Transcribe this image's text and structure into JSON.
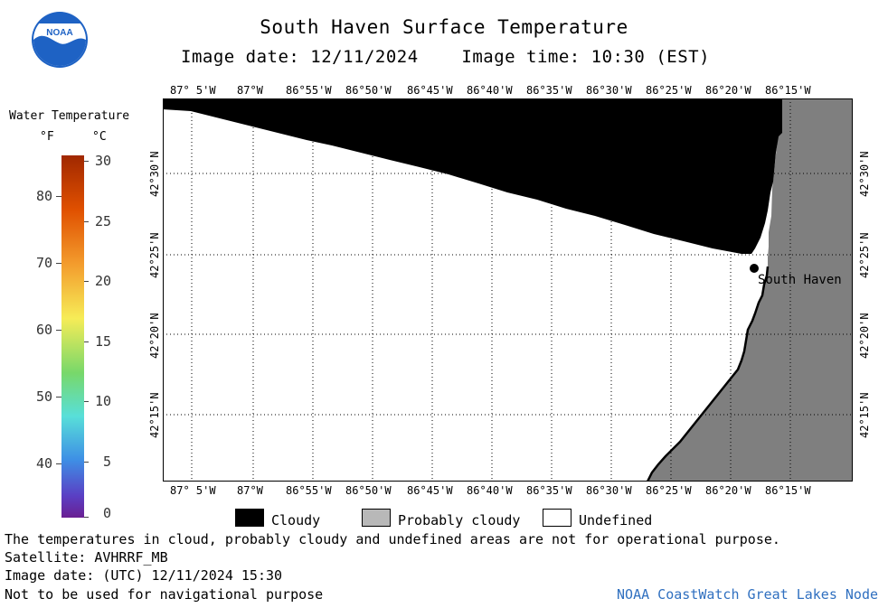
{
  "header": {
    "title": "South Haven Surface Temperature",
    "subtitle": "Image date: 12/11/2024    Image time: 10:30 (EST)"
  },
  "logo": {
    "text": "NOAA"
  },
  "legend_scale": {
    "title": "Water Temperature",
    "unit_f": "°F",
    "unit_c": "°C",
    "fahrenheit": [
      "80",
      "70",
      "60",
      "50",
      "40"
    ],
    "celsius": [
      "30",
      "25",
      "20",
      "15",
      "10",
      "5",
      "0"
    ]
  },
  "map": {
    "lon_labels": [
      "87° 5'W",
      "87°W",
      "86°55'W",
      "86°50'W",
      "86°45'W",
      "86°40'W",
      "86°35'W",
      "86°30'W",
      "86°25'W",
      "86°20'W",
      "86°15'W"
    ],
    "lat_labels": [
      "42°30'N",
      "42°25'N",
      "42°20'N",
      "42°15'N"
    ],
    "place_label": "South Haven",
    "colors": {
      "cloudy": "#000000",
      "probably_cloudy": "#808080",
      "undefined": "#ffffff"
    }
  },
  "legend": {
    "cloudy": "Cloudy",
    "probably_cloudy": "Probably cloudy",
    "undefined": "Undefined"
  },
  "footer": {
    "line1": "The temperatures in cloud, probably cloudy and undefined areas are not for operational purpose.",
    "line2": "Satellite: AVHRRF_MB",
    "line3": "Image date: (UTC) 12/11/2024  15:30",
    "line4": "Not to be used for navigational purpose",
    "credit": "NOAA CoastWatch Great Lakes Node"
  }
}
